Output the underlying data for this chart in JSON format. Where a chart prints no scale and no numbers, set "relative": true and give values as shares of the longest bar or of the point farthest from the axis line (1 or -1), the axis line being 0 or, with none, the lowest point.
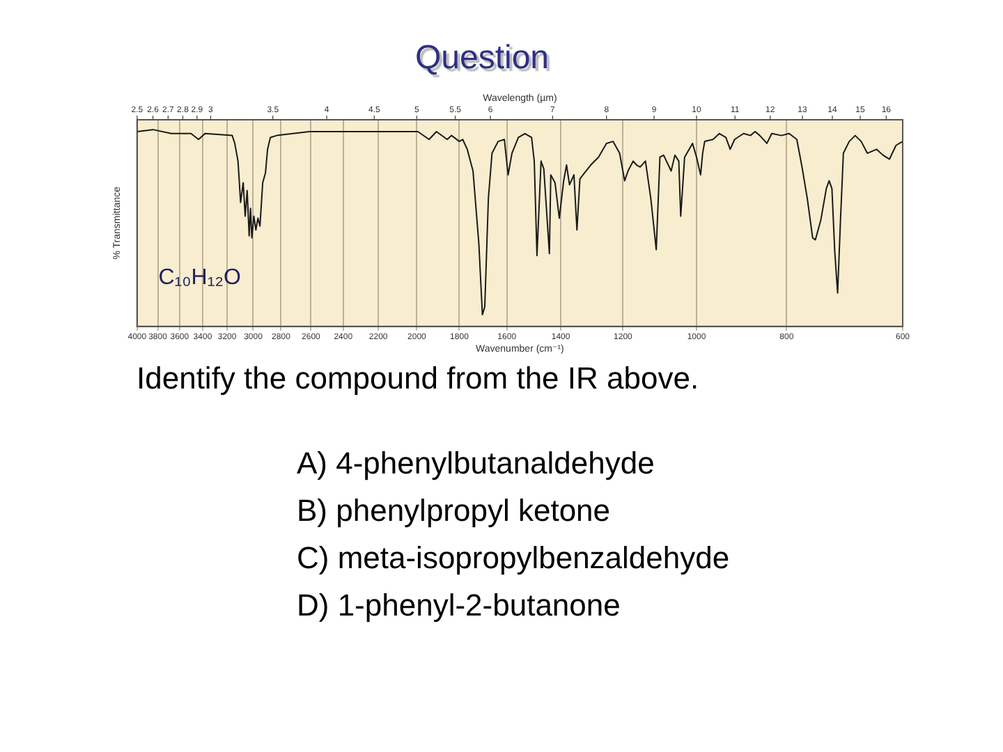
{
  "chart_data": {
    "type": "line",
    "title": "Question",
    "xlabel": "Wavenumber (cm⁻¹)",
    "ylabel": "% Transmittance",
    "x2label": "Wavelength (µm)",
    "x": [
      4000,
      3845,
      3675,
      3500,
      3435,
      3380,
      3160,
      3140,
      3115,
      3095,
      3075,
      3060,
      3045,
      3030,
      3020,
      3010,
      2995,
      2980,
      2965,
      2950,
      2930,
      2910,
      2895,
      2875,
      2830,
      2610,
      2300,
      1995,
      1940,
      1905,
      1855,
      1835,
      1800,
      1785,
      1765,
      1740,
      1715,
      1700,
      1690,
      1675,
      1660,
      1635,
      1610,
      1595,
      1580,
      1555,
      1530,
      1505,
      1495,
      1485,
      1470,
      1460,
      1440,
      1435,
      1420,
      1405,
      1390,
      1380,
      1370,
      1355,
      1345,
      1335,
      1320,
      1300,
      1275,
      1250,
      1230,
      1210,
      1195,
      1185,
      1170,
      1160,
      1150,
      1135,
      1120,
      1105,
      1095,
      1085,
      1065,
      1055,
      1045,
      1040,
      1030,
      1010,
      1000,
      990,
      985,
      980,
      960,
      945,
      930,
      920,
      910,
      890,
      875,
      865,
      855,
      840,
      830,
      810,
      795,
      780,
      770,
      760,
      750,
      745,
      735,
      725,
      720,
      715,
      710,
      705,
      700,
      695,
      685,
      675,
      665,
      655,
      640,
      630,
      620,
      610,
      600
    ],
    "values": [
      0.99,
      1,
      0.98,
      0.98,
      0.95,
      0.98,
      0.97,
      0.93,
      0.84,
      0.63,
      0.73,
      0.56,
      0.69,
      0.46,
      0.6,
      0.45,
      0.56,
      0.49,
      0.55,
      0.51,
      0.73,
      0.78,
      0.9,
      0.96,
      0.97,
      0.99,
      0.99,
      0.99,
      0.95,
      0.99,
      0.95,
      0.97,
      0.94,
      0.95,
      0.9,
      0.79,
      0.42,
      0.06,
      0.1,
      0.65,
      0.88,
      0.94,
      0.95,
      0.77,
      0.88,
      0.96,
      0.98,
      0.96,
      0.84,
      0.36,
      0.84,
      0.8,
      0.37,
      0.77,
      0.73,
      0.55,
      0.74,
      0.82,
      0.72,
      0.77,
      0.49,
      0.75,
      0.78,
      0.82,
      0.86,
      0.93,
      0.94,
      0.88,
      0.74,
      0.79,
      0.84,
      0.82,
      0.81,
      0.84,
      0.65,
      0.39,
      0.86,
      0.87,
      0.79,
      0.87,
      0.84,
      0.56,
      0.86,
      0.93,
      0.86,
      0.77,
      0.88,
      0.94,
      0.95,
      0.98,
      0.96,
      0.9,
      0.95,
      0.98,
      0.97,
      0.99,
      0.97,
      0.93,
      0.98,
      0.97,
      0.98,
      0.95,
      0.81,
      0.65,
      0.45,
      0.44,
      0.54,
      0.7,
      0.74,
      0.7,
      0.38,
      0.17,
      0.54,
      0.88,
      0.94,
      0.97,
      0.94,
      0.88,
      0.9,
      0.87,
      0.85,
      0.92,
      0.94
    ],
    "color": "#1a1a1a",
    "relative": true,
    "log": "x",
    "xlim": [
      4000,
      600
    ],
    "xticks": [
      4000,
      3800,
      3600,
      3400,
      3200,
      3000,
      2800,
      2600,
      2400,
      2200,
      2000,
      1800,
      1600,
      1400,
      1200,
      1000,
      800,
      600
    ],
    "grid": "x",
    "marker": "none",
    "annotations": [
      "2.5",
      "2.6",
      "2.7",
      "2.8",
      "2.9",
      "3",
      "3.5",
      "4",
      "4.5",
      "5",
      "5.5",
      "6",
      "7",
      "8",
      "9",
      "10",
      "11",
      "12",
      "13",
      "14",
      "15",
      "16",
      "C₁₀H₁₂O",
      "Identify the compound from the IR above.",
      "A) 4-phenylbutanaldehyde",
      "B) phenylpropyl ketone",
      "C) meta-isopropylbenzaldehyde",
      "D) 1-phenyl-2-butanone"
    ]
  }
}
